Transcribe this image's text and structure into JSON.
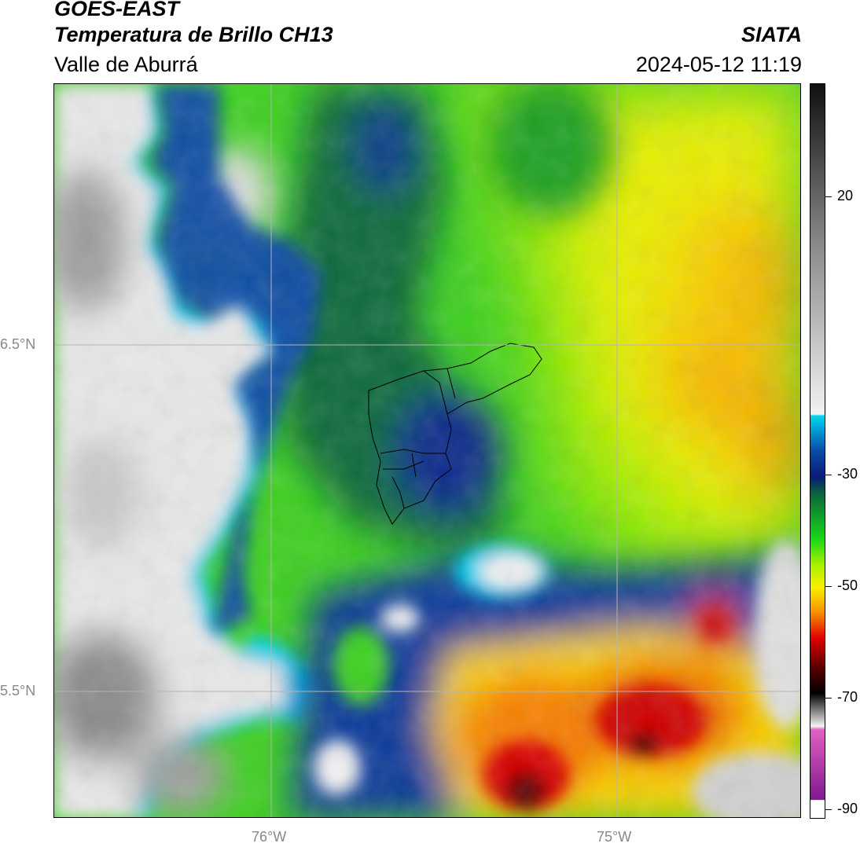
{
  "header": {
    "title": "GOES-EAST",
    "subtitle": "Temperatura de Brillo CH13",
    "region": "Valle de Aburrá",
    "agency": "SIATA",
    "timestamp": "2024-05-12 11:19"
  },
  "map": {
    "lat_labels": [
      "6.5°N",
      "5.5°N"
    ],
    "lon_labels": [
      "76°W",
      "75°W"
    ],
    "grid_color": "#b4b4b4"
  },
  "colorbar": {
    "tick_labels": [
      "20",
      "-30",
      "-50",
      "-70",
      "-90"
    ],
    "colors": {
      "warm_top": "#101010",
      "warm_mid": "#8a8a8a",
      "warm_light": "#f2f2f2",
      "cyan": "#00d8f0",
      "blue": "#0a4aa8",
      "navy": "#081c78",
      "dark_green": "#0a6a3a",
      "green": "#18d818",
      "lime": "#a8f000",
      "yellow": "#f8f000",
      "orange": "#f89000",
      "red": "#e00000",
      "dark_red": "#5a0000",
      "black": "#000000",
      "pink": "#e060c0",
      "purple": "#801890"
    }
  }
}
